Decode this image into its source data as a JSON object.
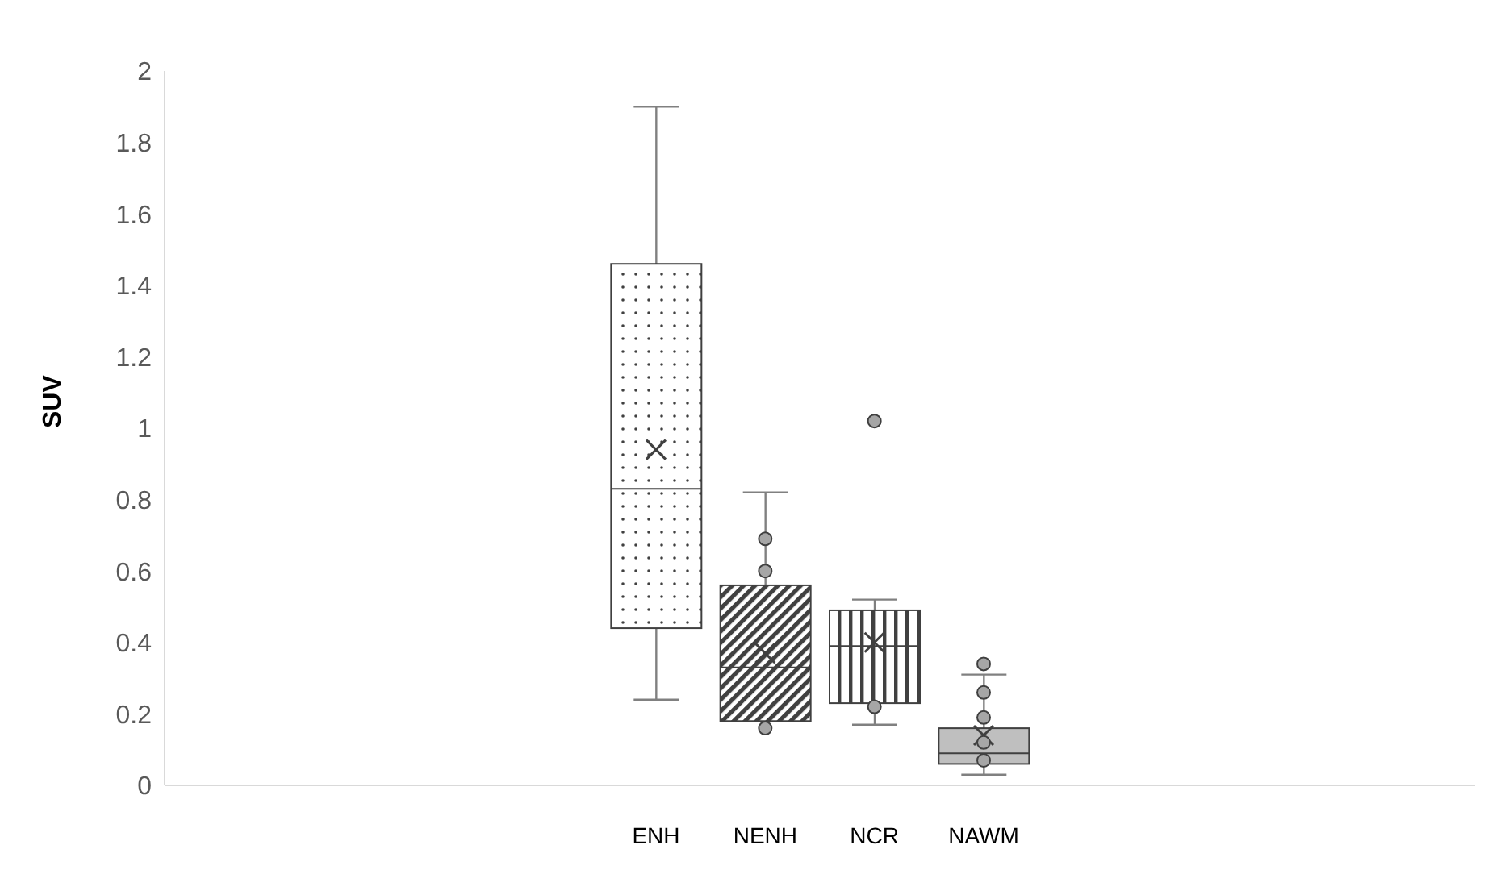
{
  "chart_data": {
    "type": "box",
    "ylabel": "SUV",
    "categories": [
      null,
      null,
      null,
      null,
      "ENH",
      "NENH",
      "NCR",
      "NAWM",
      null,
      null,
      null,
      null
    ],
    "boxes": [
      null,
      null,
      null,
      null,
      {
        "low": 0.24,
        "q1": 0.44,
        "median": 0.83,
        "q3": 1.46,
        "high": 1.9,
        "mean": 0.94
      },
      {
        "low": 0.18,
        "q1": 0.18,
        "median": 0.33,
        "q3": 0.56,
        "high": 0.82,
        "mean": 0.37,
        "outliers": [
          0.69,
          0.6,
          0.16
        ]
      },
      {
        "low": 0.17,
        "q1": 0.23,
        "median": 0.39,
        "q3": 0.49,
        "high": 0.52,
        "mean": 0.4,
        "outliers": [
          1.02,
          0.22
        ]
      },
      {
        "low": 0.03,
        "q1": 0.06,
        "median": 0.09,
        "q3": 0.16,
        "high": 0.31,
        "mean": 0.14,
        "outliers": [
          0.34,
          0.26,
          0.19,
          0.12,
          0.07
        ]
      },
      null,
      null,
      null,
      null
    ],
    "colors": [
      null,
      null,
      null,
      null,
      "#404040",
      "#404040",
      "#404040",
      "#bfbfbf",
      null,
      null,
      null,
      null
    ],
    "ylim": [
      0,
      2
    ],
    "yticks": [
      0,
      0.2,
      0.4,
      0.6,
      0.8,
      1,
      1.2,
      1.4,
      1.6,
      1.8,
      2
    ],
    "grid": false,
    "legend": false
  }
}
